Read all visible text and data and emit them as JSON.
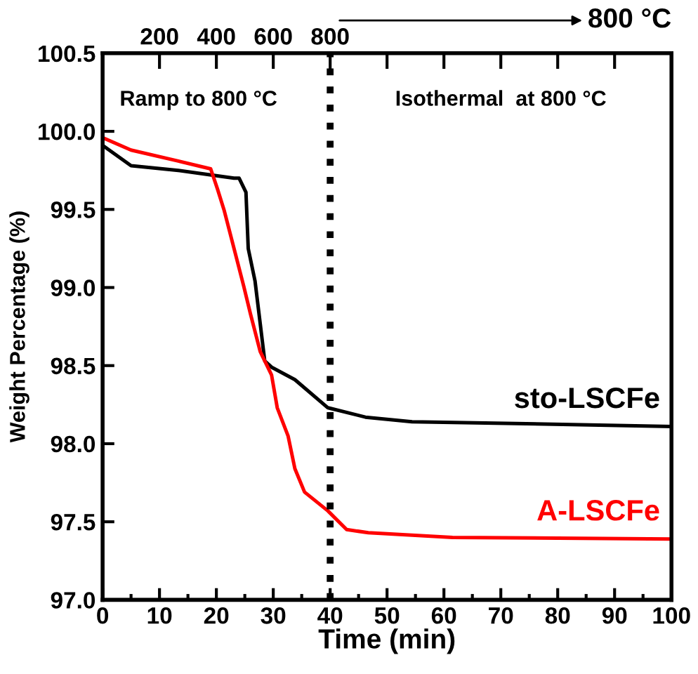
{
  "chart_data": {
    "type": "line",
    "xlabel": "Time (min)",
    "ylabel": "Weight Percentage (%)",
    "xlim": [
      0,
      100
    ],
    "xticks": [
      0,
      10,
      20,
      30,
      40,
      50,
      60,
      70,
      80,
      90,
      100
    ],
    "ylim": [
      97.0,
      100.5
    ],
    "yticks": [
      {
        "value": 97,
        "label": "97.0"
      },
      97.5,
      {
        "value": 98,
        "label": "98.0"
      },
      98.5,
      {
        "value": 99,
        "label": "99.0"
      },
      99.5,
      {
        "value": 100,
        "label": "100.0"
      },
      100.5
    ],
    "x2lim": [
      0,
      2000
    ],
    "x2ticks": [
      200,
      400,
      600,
      800,
      {
        "value": 1000,
        "label": null
      },
      {
        "value": 1200,
        "label": null
      },
      {
        "value": 1400,
        "label": null
      },
      {
        "value": 1600,
        "label": null
      },
      {
        "value": 1800,
        "label": null
      }
    ],
    "grid": false,
    "line_style": "solid",
    "marker": "none",
    "ref_lines": [
      {
        "axis": "x",
        "value": 40,
        "label": null,
        "color": "#000000",
        "line_style": "dotted"
      }
    ],
    "annotations": [
      "Ramp to 800 °C",
      "Isothermal  at 800 °C",
      "800 °C"
    ],
    "series": [
      {
        "name": "sto-LSCFe",
        "color": "#000000",
        "x": [
          0,
          5,
          13.3,
          23.1,
          24,
          25.2,
          25.6,
          26.8,
          27.7,
          28.5,
          29.7,
          33.8,
          39.6,
          46.2,
          54.4,
          70.9,
          100
        ],
        "values": [
          99.91,
          99.78,
          99.75,
          99.7,
          99.7,
          99.61,
          99.25,
          99.04,
          98.77,
          98.53,
          98.49,
          98.41,
          98.23,
          98.17,
          98.14,
          98.13,
          98.11
        ]
      },
      {
        "name": "A-LSCFe",
        "color": "#ff0000",
        "x": [
          0,
          5,
          13.3,
          19,
          20.2,
          21.4,
          23.1,
          24.8,
          26,
          27.7,
          29.7,
          30.7,
          32.6,
          33.8,
          35.5,
          39.6,
          42.9,
          46.7,
          61.5,
          100
        ],
        "values": [
          99.96,
          99.88,
          99.81,
          99.76,
          99.63,
          99.49,
          99.25,
          99.01,
          98.83,
          98.59,
          98.44,
          98.23,
          98.05,
          97.84,
          97.69,
          97.57,
          97.45,
          97.43,
          97.4,
          97.39
        ]
      }
    ]
  }
}
